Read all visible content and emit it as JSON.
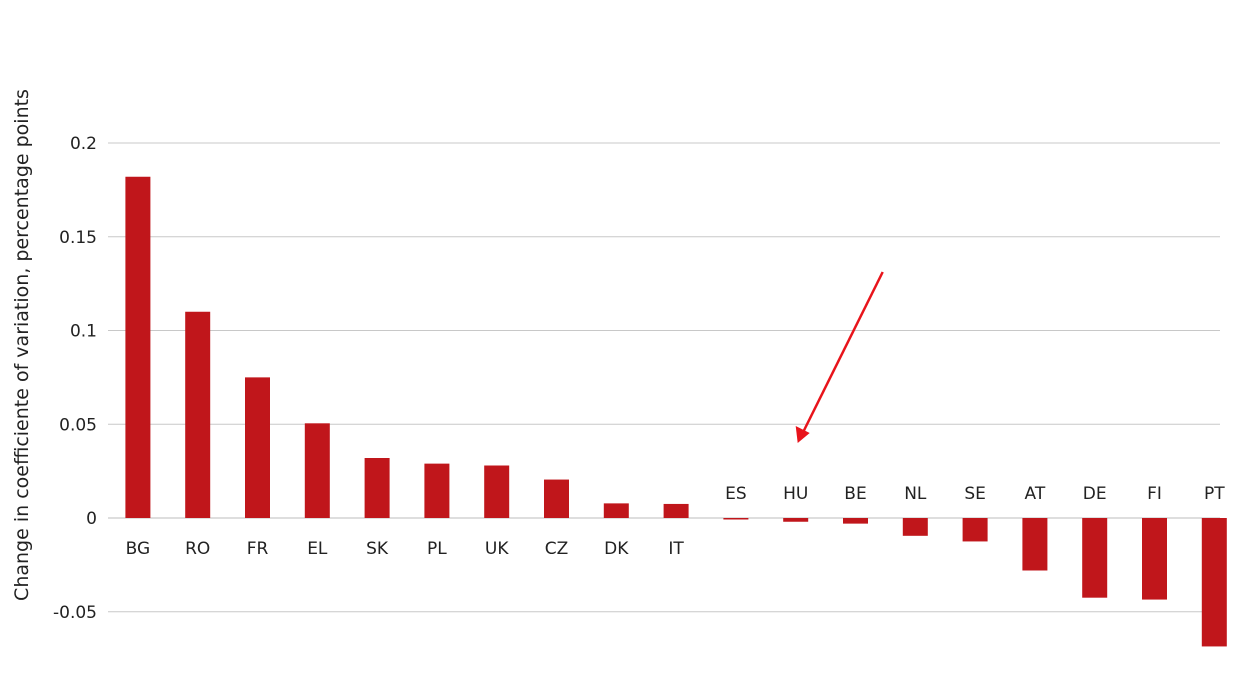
{
  "chart_data": {
    "type": "bar",
    "title": "",
    "xlabel": "",
    "ylabel": "Change in coefficiente of variation, percentage points",
    "ylim": [
      -0.065,
      0.2
    ],
    "yticks": [
      0.2,
      0.15,
      0.1,
      0.05,
      0,
      -0.05
    ],
    "ytick_labels": [
      "0.2",
      "0.15",
      "0.1",
      "0.05",
      "0",
      "-0.05"
    ],
    "grid": true,
    "legend": "none",
    "bar_color": "#c0161b",
    "annotation": {
      "type": "arrow",
      "color": "#e8141b",
      "points_to": "HU"
    },
    "categories": [
      "BG",
      "RO",
      "FR",
      "EL",
      "SK",
      "PL",
      "UK",
      "CZ",
      "DK",
      "IT",
      "ES",
      "HU",
      "BE",
      "NL",
      "SE",
      "AT",
      "DE",
      "FI",
      "PT"
    ],
    "values": [
      0.182,
      0.11,
      0.075,
      0.0505,
      0.032,
      0.029,
      0.028,
      0.0205,
      0.0078,
      0.0075,
      -0.0008,
      -0.002,
      -0.003,
      -0.0095,
      -0.0125,
      -0.028,
      -0.0425,
      -0.0435,
      -0.0685
    ]
  }
}
